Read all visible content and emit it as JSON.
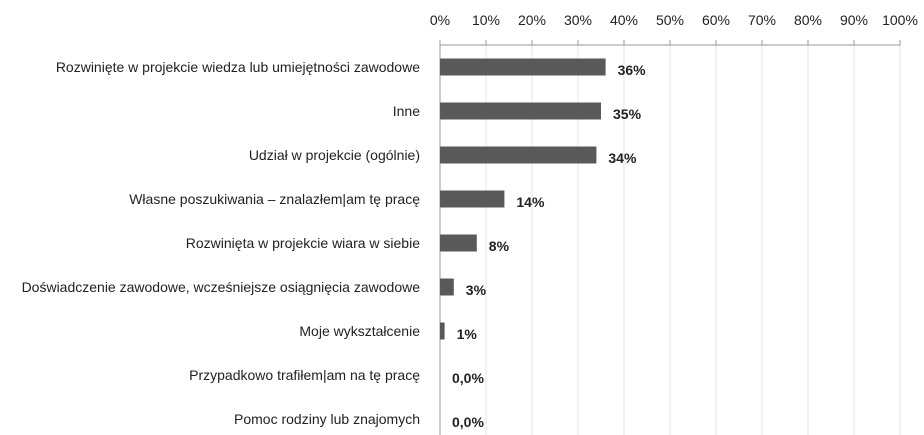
{
  "chart_data": {
    "type": "bar",
    "orientation": "horizontal",
    "categories": [
      "Rozwinięte w projekcie wiedza lub umiejętności zawodowe",
      "Inne",
      "Udział w projekcie (ogólnie)",
      "Własne poszukiwania – znalazłem|am tę pracę",
      "Rozwinięta w projekcie wiara w siebie",
      "Doświadczenie zawodowe, wcześniejsze osiągnięcia zawodowe",
      "Moje wykształcenie",
      "Przypadkowo trafiłem|am na tę pracę",
      "Pomoc rodziny lub znajomych"
    ],
    "values": [
      36,
      35,
      34,
      14,
      8,
      3,
      1,
      0,
      0
    ],
    "value_labels": [
      "36%",
      "35%",
      "34%",
      "14%",
      "8%",
      "3%",
      "1%",
      "0,0%",
      "0,0%"
    ],
    "color": "#595959",
    "xlim": [
      0,
      100
    ],
    "xticks": [
      {
        "value": 0,
        "label": "0%"
      },
      {
        "value": 10,
        "label": "10%"
      },
      {
        "value": 20,
        "label": "20%"
      },
      {
        "value": 30,
        "label": "30%"
      },
      {
        "value": 40,
        "label": "40%"
      },
      {
        "value": 50,
        "label": "50%"
      },
      {
        "value": 60,
        "label": "60%"
      },
      {
        "value": 70,
        "label": "70%"
      },
      {
        "value": 80,
        "label": "80%"
      },
      {
        "value": 90,
        "label": "90%"
      },
      {
        "value": 100,
        "label": "100%"
      }
    ],
    "grid": true
  }
}
